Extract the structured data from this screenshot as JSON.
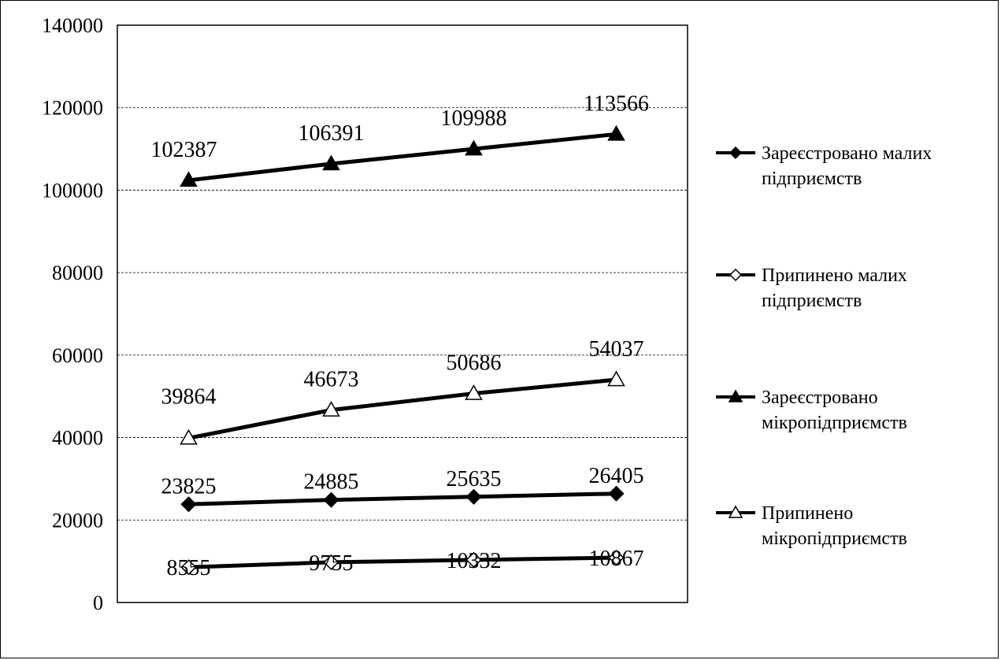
{
  "chart_data": {
    "type": "line",
    "title": "",
    "xlabel": "",
    "ylabel": "",
    "categories": [
      "",
      "",
      "",
      ""
    ],
    "ylim": [
      0,
      140000
    ],
    "yticks": [
      "0",
      "20000",
      "40000",
      "60000",
      "80000",
      "100000",
      "120000",
      "140000"
    ],
    "grid": "horizontal-dashed",
    "legend_position": "right",
    "series": [
      {
        "name": "Зареєстровано малих підприємств",
        "legend_lines": [
          "Зареєстровано малих",
          "підприємств"
        ],
        "marker": "diamond-filled",
        "values": [
          23825,
          24885,
          25635,
          26405
        ],
        "labels": [
          "23825",
          "24885",
          "25635",
          "26405"
        ]
      },
      {
        "name": "Припинено малих підприємств",
        "legend_lines": [
          "Припинено малих",
          "підприємств"
        ],
        "marker": "diamond-open",
        "values": [
          8555,
          9755,
          10332,
          10867
        ],
        "labels": [
          "8555",
          "9755",
          "10332",
          "10867"
        ]
      },
      {
        "name": "Зареєстровано мікропідприємств",
        "legend_lines": [
          "Зареєстровано",
          "мікропідприємств"
        ],
        "marker": "triangle-filled",
        "values": [
          102387,
          106391,
          109988,
          113566
        ],
        "labels": [
          "102387",
          "106391",
          "109988",
          "113566"
        ]
      },
      {
        "name": "Припинено мікропідприємств",
        "legend_lines": [
          "Припинено",
          "мікропідприємств"
        ],
        "marker": "triangle-open",
        "values": [
          39864,
          46673,
          50686,
          54037
        ],
        "labels": [
          "39864",
          "46673",
          "50686",
          "54037"
        ]
      }
    ]
  }
}
